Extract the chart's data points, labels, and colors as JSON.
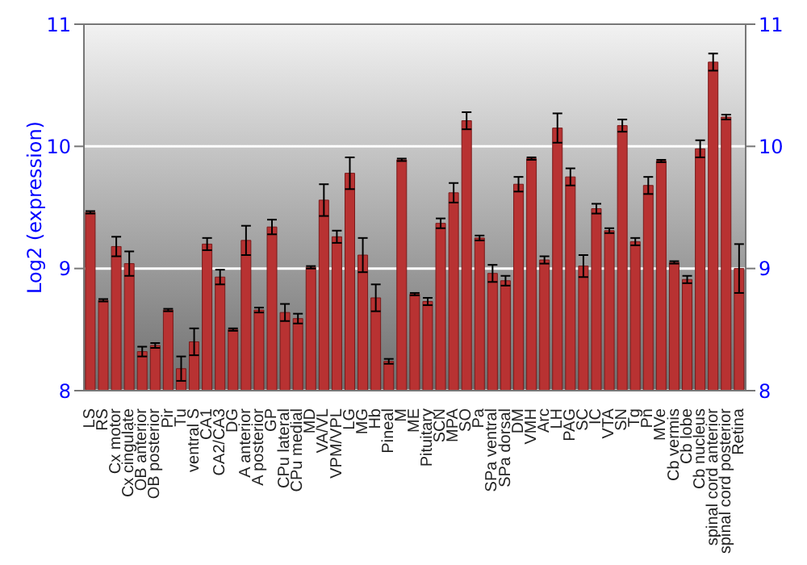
{
  "chart_data": {
    "type": "bar",
    "ylabel": "Log2 (expression)",
    "categories": [
      "LS",
      "RS",
      "Cx motor",
      "Cx cingulate",
      "OB anterior",
      "OB posterior",
      "Pir",
      "Tu",
      "ventral S",
      "CA1",
      "CA2/CA3",
      "DG",
      "A anterior",
      "A posterior",
      "GP",
      "CPu lateral",
      "CPu medial",
      "MD",
      "VA/VL",
      "VPM/VPL",
      "LG",
      "MG",
      "Hb",
      "Pineal",
      "M",
      "ME",
      "Pituitary",
      "SCN",
      "MPA",
      "SO",
      "Pa",
      "SPa ventral",
      "SPa dorsal",
      "DM",
      "VMH",
      "Arc",
      "LH",
      "PAG",
      "SC",
      "IC",
      "VTA",
      "SN",
      "Tg",
      "Pn",
      "MVe",
      "Cb vermis",
      "Cb lobe",
      "Cb nucleus",
      "spinal cord anterior",
      "spinal cord posterior",
      "Retina"
    ],
    "values": [
      9.46,
      8.74,
      9.18,
      9.04,
      8.32,
      8.37,
      8.66,
      8.18,
      8.4,
      9.2,
      8.93,
      8.5,
      9.23,
      8.66,
      9.34,
      8.64,
      8.59,
      9.01,
      9.56,
      9.26,
      9.78,
      9.11,
      8.76,
      8.24,
      9.89,
      8.79,
      8.73,
      9.37,
      9.62,
      10.21,
      9.25,
      8.96,
      8.9,
      9.69,
      9.9,
      9.07,
      10.15,
      9.75,
      9.02,
      9.49,
      9.31,
      10.17,
      9.22,
      9.68,
      9.88,
      9.05,
      8.91,
      9.98,
      10.69,
      10.24,
      9.0
    ],
    "errors": [
      0.01,
      0.01,
      0.08,
      0.1,
      0.04,
      0.02,
      0.01,
      0.1,
      0.11,
      0.05,
      0.06,
      0.01,
      0.12,
      0.02,
      0.06,
      0.07,
      0.04,
      0.01,
      0.13,
      0.05,
      0.13,
      0.14,
      0.11,
      0.02,
      0.01,
      0.01,
      0.03,
      0.04,
      0.08,
      0.07,
      0.02,
      0.07,
      0.04,
      0.06,
      0.01,
      0.03,
      0.12,
      0.07,
      0.09,
      0.04,
      0.02,
      0.05,
      0.03,
      0.07,
      0.01,
      0.01,
      0.03,
      0.07,
      0.07,
      0.02,
      0.2
    ],
    "color": "#b83232",
    "ylim": [
      8,
      11
    ],
    "yticks": [
      8,
      9,
      10,
      11
    ],
    "y2lim": [
      8,
      11
    ],
    "y2ticks": [
      8,
      9,
      10,
      11
    ],
    "grid": "y"
  }
}
